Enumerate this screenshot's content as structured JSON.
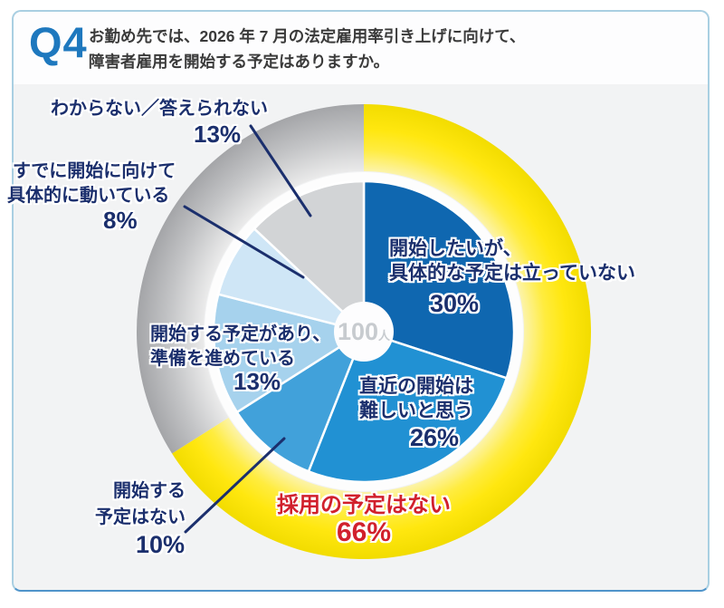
{
  "header": {
    "q_label": "Q4",
    "question_line1": "お勤め先では、2026 年 7 月の法定雇用率引き上げに向けて、",
    "question_line2": "障害者雇用を開始する予定はありますか。"
  },
  "chart_data": {
    "type": "pie",
    "variant": "donut-with-outer-ring",
    "title": "お勤め先では、2026年7月の法定雇用率引き上げに向けて、障害者雇用を開始する予定はありますか。",
    "total_n_label": "100",
    "total_n_unit": "人",
    "start_angle_deg": 0,
    "direction": "clockwise",
    "segments": [
      {
        "label": "開始したいが、具体的な予定は立っていない",
        "value": 30,
        "color": "#0f67b0"
      },
      {
        "label": "直近の開始は難しいと思う",
        "value": 26,
        "color": "#2191d3"
      },
      {
        "label": "開始する予定はない",
        "value": 10,
        "color": "#41a1da"
      },
      {
        "label": "開始する予定があり、準備を進めている",
        "value": 13,
        "color": "#a6d2ed"
      },
      {
        "label": "すでに開始に向けて具体的に動いている",
        "value": 8,
        "color": "#cfe6f6"
      },
      {
        "label": "わからない／答えられない",
        "value": 13,
        "color": "#d2d4d6"
      }
    ],
    "outer_ring": [
      {
        "label": "採用の予定はない",
        "value": 66,
        "color_type": "yellow"
      },
      {
        "label": "",
        "value": 34,
        "color_type": "gray"
      }
    ],
    "highlight": {
      "label": "採用の予定はない",
      "pct": "66%",
      "color": "#d1202c"
    }
  },
  "callouts": {
    "unknown": {
      "line1": "わからない／答えられない",
      "pct": "13%"
    },
    "already": {
      "line1": "すでに開始に向けて",
      "line2": "具体的に動いている",
      "pct": "8%"
    },
    "preparing": {
      "line1": "開始する予定があり、",
      "line2": "準備を進めている",
      "pct": "13%"
    },
    "no_plan": {
      "line1": "開始する",
      "line2": "予定はない",
      "pct": "10%"
    },
    "want": {
      "line1": "開始したいが、",
      "line2": "具体的な予定は立っていない",
      "pct": "30%"
    },
    "difficult": {
      "line1": "直近の開始は",
      "line2": "難しいと思う",
      "pct": "26%"
    },
    "no_hire": {
      "line1": "採用の予定はない",
      "pct": "66%"
    },
    "center": {
      "value": "100",
      "unit": "人"
    }
  },
  "colors": {
    "accent_blue": "#1e78be",
    "navy_label": "#1b2f6d",
    "red_label": "#d1202c",
    "ring_yellow": "#ffe606",
    "ring_gray": "#a4a5a8",
    "card_border": "#a9cfe2",
    "card_border_bottom": "#4f94ca"
  }
}
